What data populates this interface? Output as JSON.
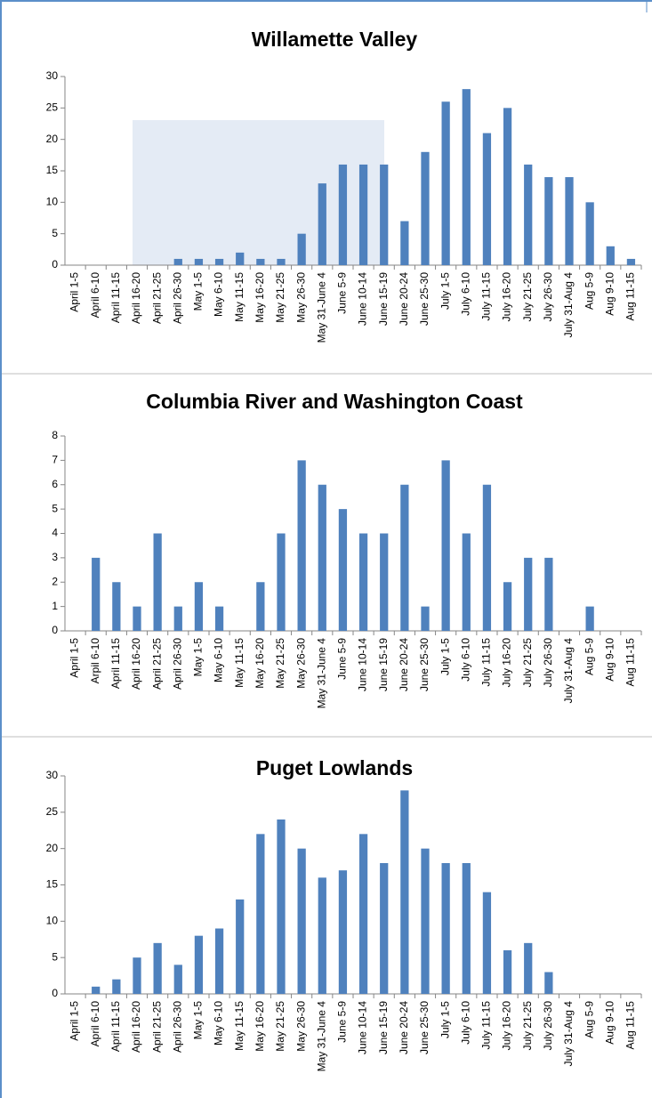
{
  "chart_data": [
    {
      "type": "bar",
      "title": "Willamette Valley",
      "color": "#4f81bd",
      "categories": [
        "April 1-5",
        "April 6-10",
        "April 11-15",
        "April 16-20",
        "April 21-25",
        "April 26-30",
        "May 1-5",
        "May 6-10",
        "May 11-15",
        "May 16-20",
        "May 21-25",
        "May 26-30",
        "May 31-June 4",
        "June 5-9",
        "June 10-14",
        "June 15-19",
        "June 20-24",
        "June 25-30",
        "July 1-5",
        "July 6-10",
        "July 11-15",
        "July 16-20",
        "July 21-25",
        "July 26-30",
        "July 31-Aug 4",
        "Aug 5-9",
        "Aug 9-10",
        "Aug 11-15"
      ],
      "values": [
        0,
        0,
        0,
        0,
        0,
        1,
        1,
        1,
        2,
        1,
        1,
        5,
        13,
        16,
        16,
        16,
        7,
        18,
        26,
        28,
        21,
        25,
        16,
        14,
        14,
        10,
        3,
        1
      ],
      "ylim": [
        0,
        30
      ],
      "yticks": [
        0,
        5,
        10,
        15,
        20,
        25,
        30
      ],
      "grid": false
    },
    {
      "type": "bar",
      "title": "Columbia River and Washington Coast",
      "color": "#4f81bd",
      "categories": [
        "April 1-5",
        "Arpil 6-10",
        "April 11-15",
        "April 16-20",
        "April 21-25",
        "April 26-30",
        "May 1-5",
        "May 6-10",
        "May 11-15",
        "May 16-20",
        "May 21-25",
        "May 26-30",
        "May 31-June 4",
        "June 5-9",
        "June 10-14",
        "June 15-19",
        "June 20-24",
        "June 25-30",
        "July 1-5",
        "July 6-10",
        "July 11-15",
        "July 16-20",
        "July 21-25",
        "July 26-30",
        "July 31-Aug 4",
        "Aug 5-9",
        "Aug 9-10",
        "Aug 11-15"
      ],
      "values": [
        0,
        3,
        2,
        1,
        4,
        1,
        2,
        1,
        0,
        2,
        4,
        7,
        6,
        5,
        4,
        4,
        6,
        1,
        7,
        4,
        6,
        2,
        3,
        3,
        0,
        1,
        0,
        0
      ],
      "ylim": [
        0,
        8
      ],
      "yticks": [
        0,
        1,
        2,
        3,
        4,
        5,
        6,
        7,
        8
      ],
      "grid": false
    },
    {
      "type": "bar",
      "title": "Puget Lowlands",
      "color": "#4f81bd",
      "categories": [
        "April 1-5",
        "April 6-10",
        "April 11-15",
        "April 16-20",
        "April 21-25",
        "April 26-30",
        "May 1-5",
        "May 6-10",
        "May 11-15",
        "May 16-20",
        "May 21-25",
        "May 26-30",
        "May 31-June 4",
        "June 5-9",
        "June 10-14",
        "June 15-19",
        "June 20-24",
        "June 25-30",
        "July 1-5",
        "July 6-10",
        "July 11-15",
        "July 16-20",
        "July 21-25",
        "July 26-30",
        "July 31-Aug 4",
        "Aug 5-9",
        "Aug 9-10",
        "Aug 11-15"
      ],
      "values": [
        0,
        1,
        2,
        5,
        7,
        4,
        8,
        9,
        13,
        22,
        24,
        20,
        16,
        17,
        22,
        18,
        28,
        20,
        18,
        18,
        14,
        6,
        7,
        3,
        0,
        0,
        0,
        0
      ],
      "ylim": [
        0,
        30
      ],
      "yticks": [
        0,
        5,
        10,
        15,
        20,
        25,
        30
      ],
      "grid": false
    }
  ]
}
